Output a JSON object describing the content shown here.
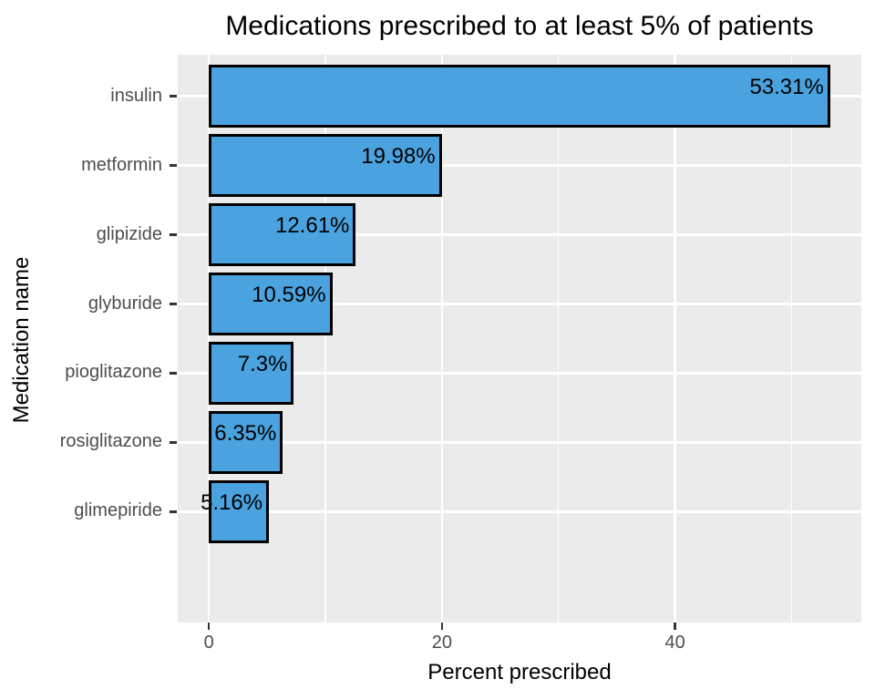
{
  "title": "Medications prescribed to at least 5% of patients",
  "chart_data": {
    "type": "bar",
    "orientation": "horizontal",
    "title": "Medications prescribed to at least 5% of patients",
    "xlabel": "Percent prescribed",
    "ylabel": "Medication name",
    "categories": [
      "insulin",
      "metformin",
      "glipizide",
      "glyburide",
      "pioglitazone",
      "rosiglitazone",
      "glimepiride"
    ],
    "values": [
      53.31,
      19.98,
      12.61,
      10.59,
      7.3,
      6.35,
      5.16
    ],
    "bar_labels": [
      "53.31%",
      "19.98%",
      "12.61%",
      "10.59%",
      "7.3%",
      "6.35%",
      "5.16%"
    ],
    "x_major_ticks": [
      0,
      20,
      40
    ],
    "x_major_tick_labels": [
      "0",
      "20",
      "40"
    ],
    "x_minor_ticks": [
      10,
      30,
      50
    ],
    "xlim": [
      -2.67,
      55.98
    ],
    "grid": true,
    "legend_position": "none",
    "colors": {
      "bar_fill": "#4AA2DE",
      "bar_stroke": "#000000",
      "panel_background": "#EBEBEB",
      "gridline": "#FFFFFF",
      "axis_text": "#4D4D4D",
      "tick_mark": "#333333",
      "title_text": "#000000"
    }
  }
}
